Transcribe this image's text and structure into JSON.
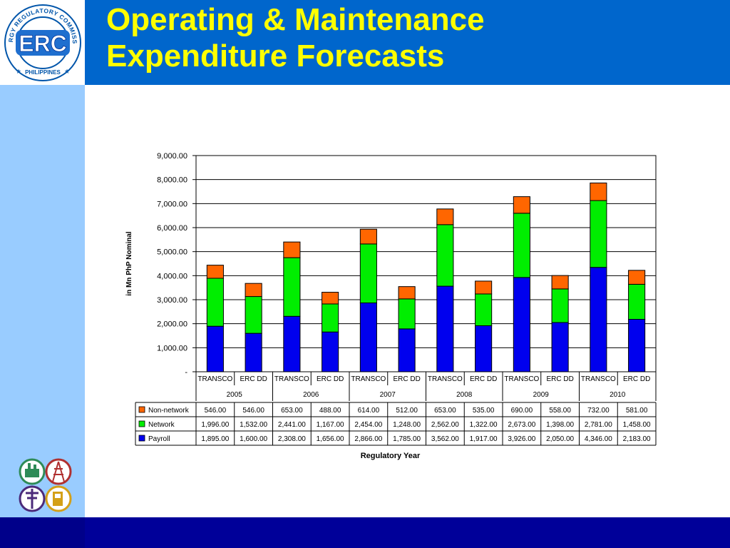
{
  "slide": {
    "title_line1": "Operating & Maintenance",
    "title_line2": "Expenditure Forecasts",
    "logo_text": "ERC",
    "logo_ring_text": "ENERGY REGULATORY COMMISSION",
    "logo_bottom_text": "PHILIPPINES"
  },
  "colors": {
    "top_bar": "#0066cc",
    "title": "#ffff00",
    "sidebar": "#99ccff",
    "bottom_bar": "#000099",
    "payroll": "#0000ee",
    "network": "#00ee00",
    "non_network": "#ff6600"
  },
  "chart_data": {
    "type": "bar",
    "stacked": true,
    "ylabel": "in Mn PhP Nominal",
    "xlabel": "Regulatory Year",
    "ylim": [
      0,
      9000
    ],
    "yticks": [
      0,
      1000,
      2000,
      3000,
      4000,
      5000,
      6000,
      7000,
      8000,
      9000
    ],
    "ytick_labels": [
      "-",
      "1,000.00",
      "2,000.00",
      "3,000.00",
      "4,000.00",
      "5,000.00",
      "6,000.00",
      "7,000.00",
      "8,000.00",
      "9,000.00"
    ],
    "grid": true,
    "categories": [
      "TRANSCO",
      "ERC DD",
      "TRANSCO",
      "ERC DD",
      "TRANSCO",
      "ERC DD",
      "TRANSCO",
      "ERC DD",
      "TRANSCO",
      "ERC DD",
      "TRANSCO",
      "ERC DD"
    ],
    "groups": [
      "2005",
      "2006",
      "2007",
      "2008",
      "2009",
      "2010"
    ],
    "series": [
      {
        "name": "Non-network",
        "color": "#ff6600",
        "values": [
          546,
          546,
          653,
          488,
          614,
          512,
          653,
          535,
          690,
          558,
          732,
          581
        ],
        "labels": [
          "546.00",
          "546.00",
          "653.00",
          "488.00",
          "614.00",
          "512.00",
          "653.00",
          "535.00",
          "690.00",
          "558.00",
          "732.00",
          "581.00"
        ]
      },
      {
        "name": "Network",
        "color": "#00ee00",
        "values": [
          1996,
          1532,
          2441,
          1167,
          2454,
          1248,
          2562,
          1322,
          2673,
          1398,
          2781,
          1458
        ],
        "labels": [
          "1,996.00",
          "1,532.00",
          "2,441.00",
          "1,167.00",
          "2,454.00",
          "1,248.00",
          "2,562.00",
          "1,322.00",
          "2,673.00",
          "1,398.00",
          "2,781.00",
          "1,458.00"
        ]
      },
      {
        "name": "Payroll",
        "color": "#0000ee",
        "values": [
          1895,
          1600,
          2308,
          1656,
          2866,
          1785,
          3562,
          1917,
          3926,
          2050,
          4346,
          2183
        ],
        "labels": [
          "1,895.00",
          "1,600.00",
          "2,308.00",
          "1,656.00",
          "2,866.00",
          "1,785.00",
          "3,562.00",
          "1,917.00",
          "3,926.00",
          "2,050.00",
          "4,346.00",
          "2,183.00"
        ]
      }
    ],
    "stack_order": [
      "Payroll",
      "Network",
      "Non-network"
    ],
    "legend_position": "table-left"
  }
}
